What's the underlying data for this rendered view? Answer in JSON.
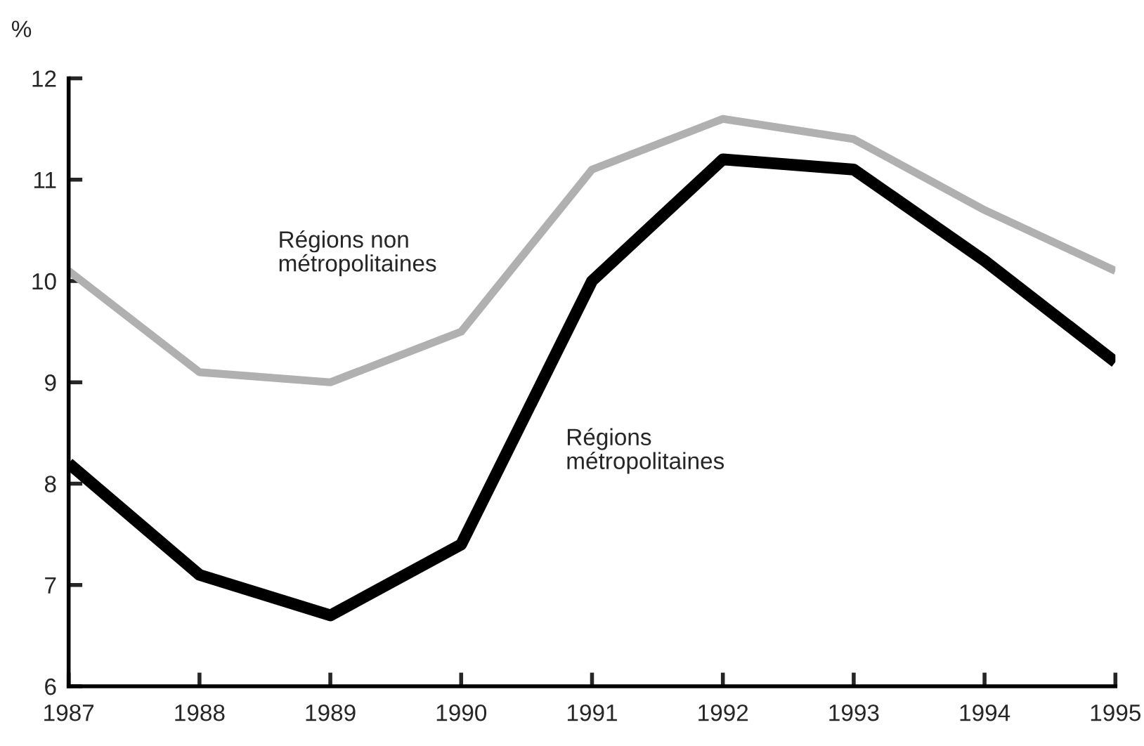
{
  "chart_data": {
    "type": "line",
    "ylabel": "%",
    "x": [
      1987,
      1988,
      1989,
      1990,
      1991,
      1992,
      1993,
      1994,
      1995
    ],
    "series": [
      {
        "name": "Régions non métropolitaines",
        "color": "#b0b0b0",
        "values": [
          10.1,
          9.1,
          9.0,
          9.5,
          11.1,
          11.6,
          11.4,
          10.7,
          10.1
        ]
      },
      {
        "name": "Régions métropolitaines",
        "color": "#000000",
        "values": [
          8.2,
          7.1,
          6.7,
          7.4,
          10.0,
          11.2,
          11.1,
          10.2,
          9.2
        ]
      }
    ],
    "xlim": [
      1987,
      1995
    ],
    "xticks": [
      1987,
      1988,
      1989,
      1990,
      1991,
      1992,
      1993,
      1994,
      1995
    ],
    "ylim": [
      6,
      12
    ],
    "yticks": [
      6,
      7,
      8,
      9,
      10,
      11,
      12
    ],
    "grid": false,
    "legend": false,
    "marker": "none",
    "line_style": "solid"
  }
}
